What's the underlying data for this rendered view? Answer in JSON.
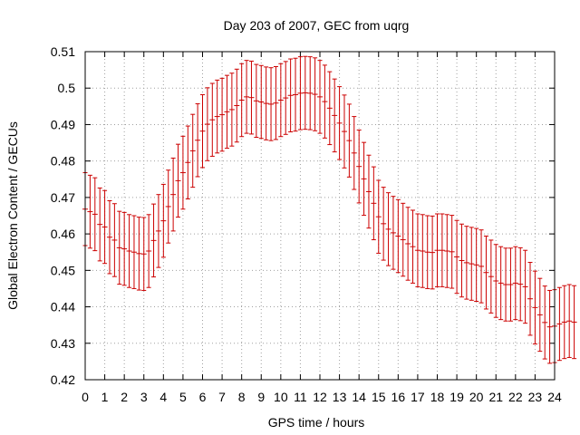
{
  "chart_data": {
    "type": "scatter",
    "style": "errorbars",
    "title": "Day 203 of 2007, GEC from uqrg",
    "xlabel": "GPS time / hours",
    "ylabel": "Global Electron Content / GECUs",
    "xlim": [
      0,
      24
    ],
    "ylim": [
      0.42,
      0.51
    ],
    "xticks": [
      "0",
      "1",
      "2",
      "3",
      "4",
      "5",
      "6",
      "7",
      "8",
      "9",
      "10",
      "11",
      "12",
      "13",
      "14",
      "15",
      "16",
      "17",
      "18",
      "19",
      "20",
      "21",
      "22",
      "23",
      "24"
    ],
    "yticks": [
      "0.42",
      "0.43",
      "0.44",
      "0.45",
      "0.46",
      "0.47",
      "0.48",
      "0.49",
      "0.5",
      "0.51"
    ],
    "grid": true,
    "series_color": "#cc0000",
    "x_step_hours": 0.25,
    "error": 0.01,
    "values": [
      0.4668,
      0.4661,
      0.4654,
      0.4626,
      0.4619,
      0.4591,
      0.4583,
      0.4562,
      0.4559,
      0.4553,
      0.455,
      0.4546,
      0.4545,
      0.4553,
      0.4582,
      0.4608,
      0.4636,
      0.4675,
      0.4708,
      0.4746,
      0.4768,
      0.4796,
      0.4828,
      0.4857,
      0.4882,
      0.4901,
      0.4913,
      0.4922,
      0.4927,
      0.4935,
      0.4941,
      0.4952,
      0.4967,
      0.4976,
      0.4974,
      0.4965,
      0.4962,
      0.4958,
      0.4956,
      0.4959,
      0.4967,
      0.4973,
      0.498,
      0.4982,
      0.4986,
      0.4987,
      0.4986,
      0.4983,
      0.4976,
      0.4963,
      0.4945,
      0.4925,
      0.4904,
      0.4881,
      0.4856,
      0.4822,
      0.4785,
      0.4751,
      0.4716,
      0.4684,
      0.4647,
      0.4628,
      0.4613,
      0.4603,
      0.4594,
      0.4584,
      0.4573,
      0.4565,
      0.4555,
      0.4553,
      0.455,
      0.4549,
      0.4555,
      0.4555,
      0.4553,
      0.4551,
      0.4537,
      0.4527,
      0.4521,
      0.4518,
      0.4515,
      0.4511,
      0.4494,
      0.4483,
      0.4471,
      0.4465,
      0.4461,
      0.4461,
      0.4465,
      0.4462,
      0.4455,
      0.4422,
      0.4398,
      0.4378,
      0.4357,
      0.4345,
      0.4347,
      0.4353,
      0.4358,
      0.4361,
      0.4358
    ]
  }
}
